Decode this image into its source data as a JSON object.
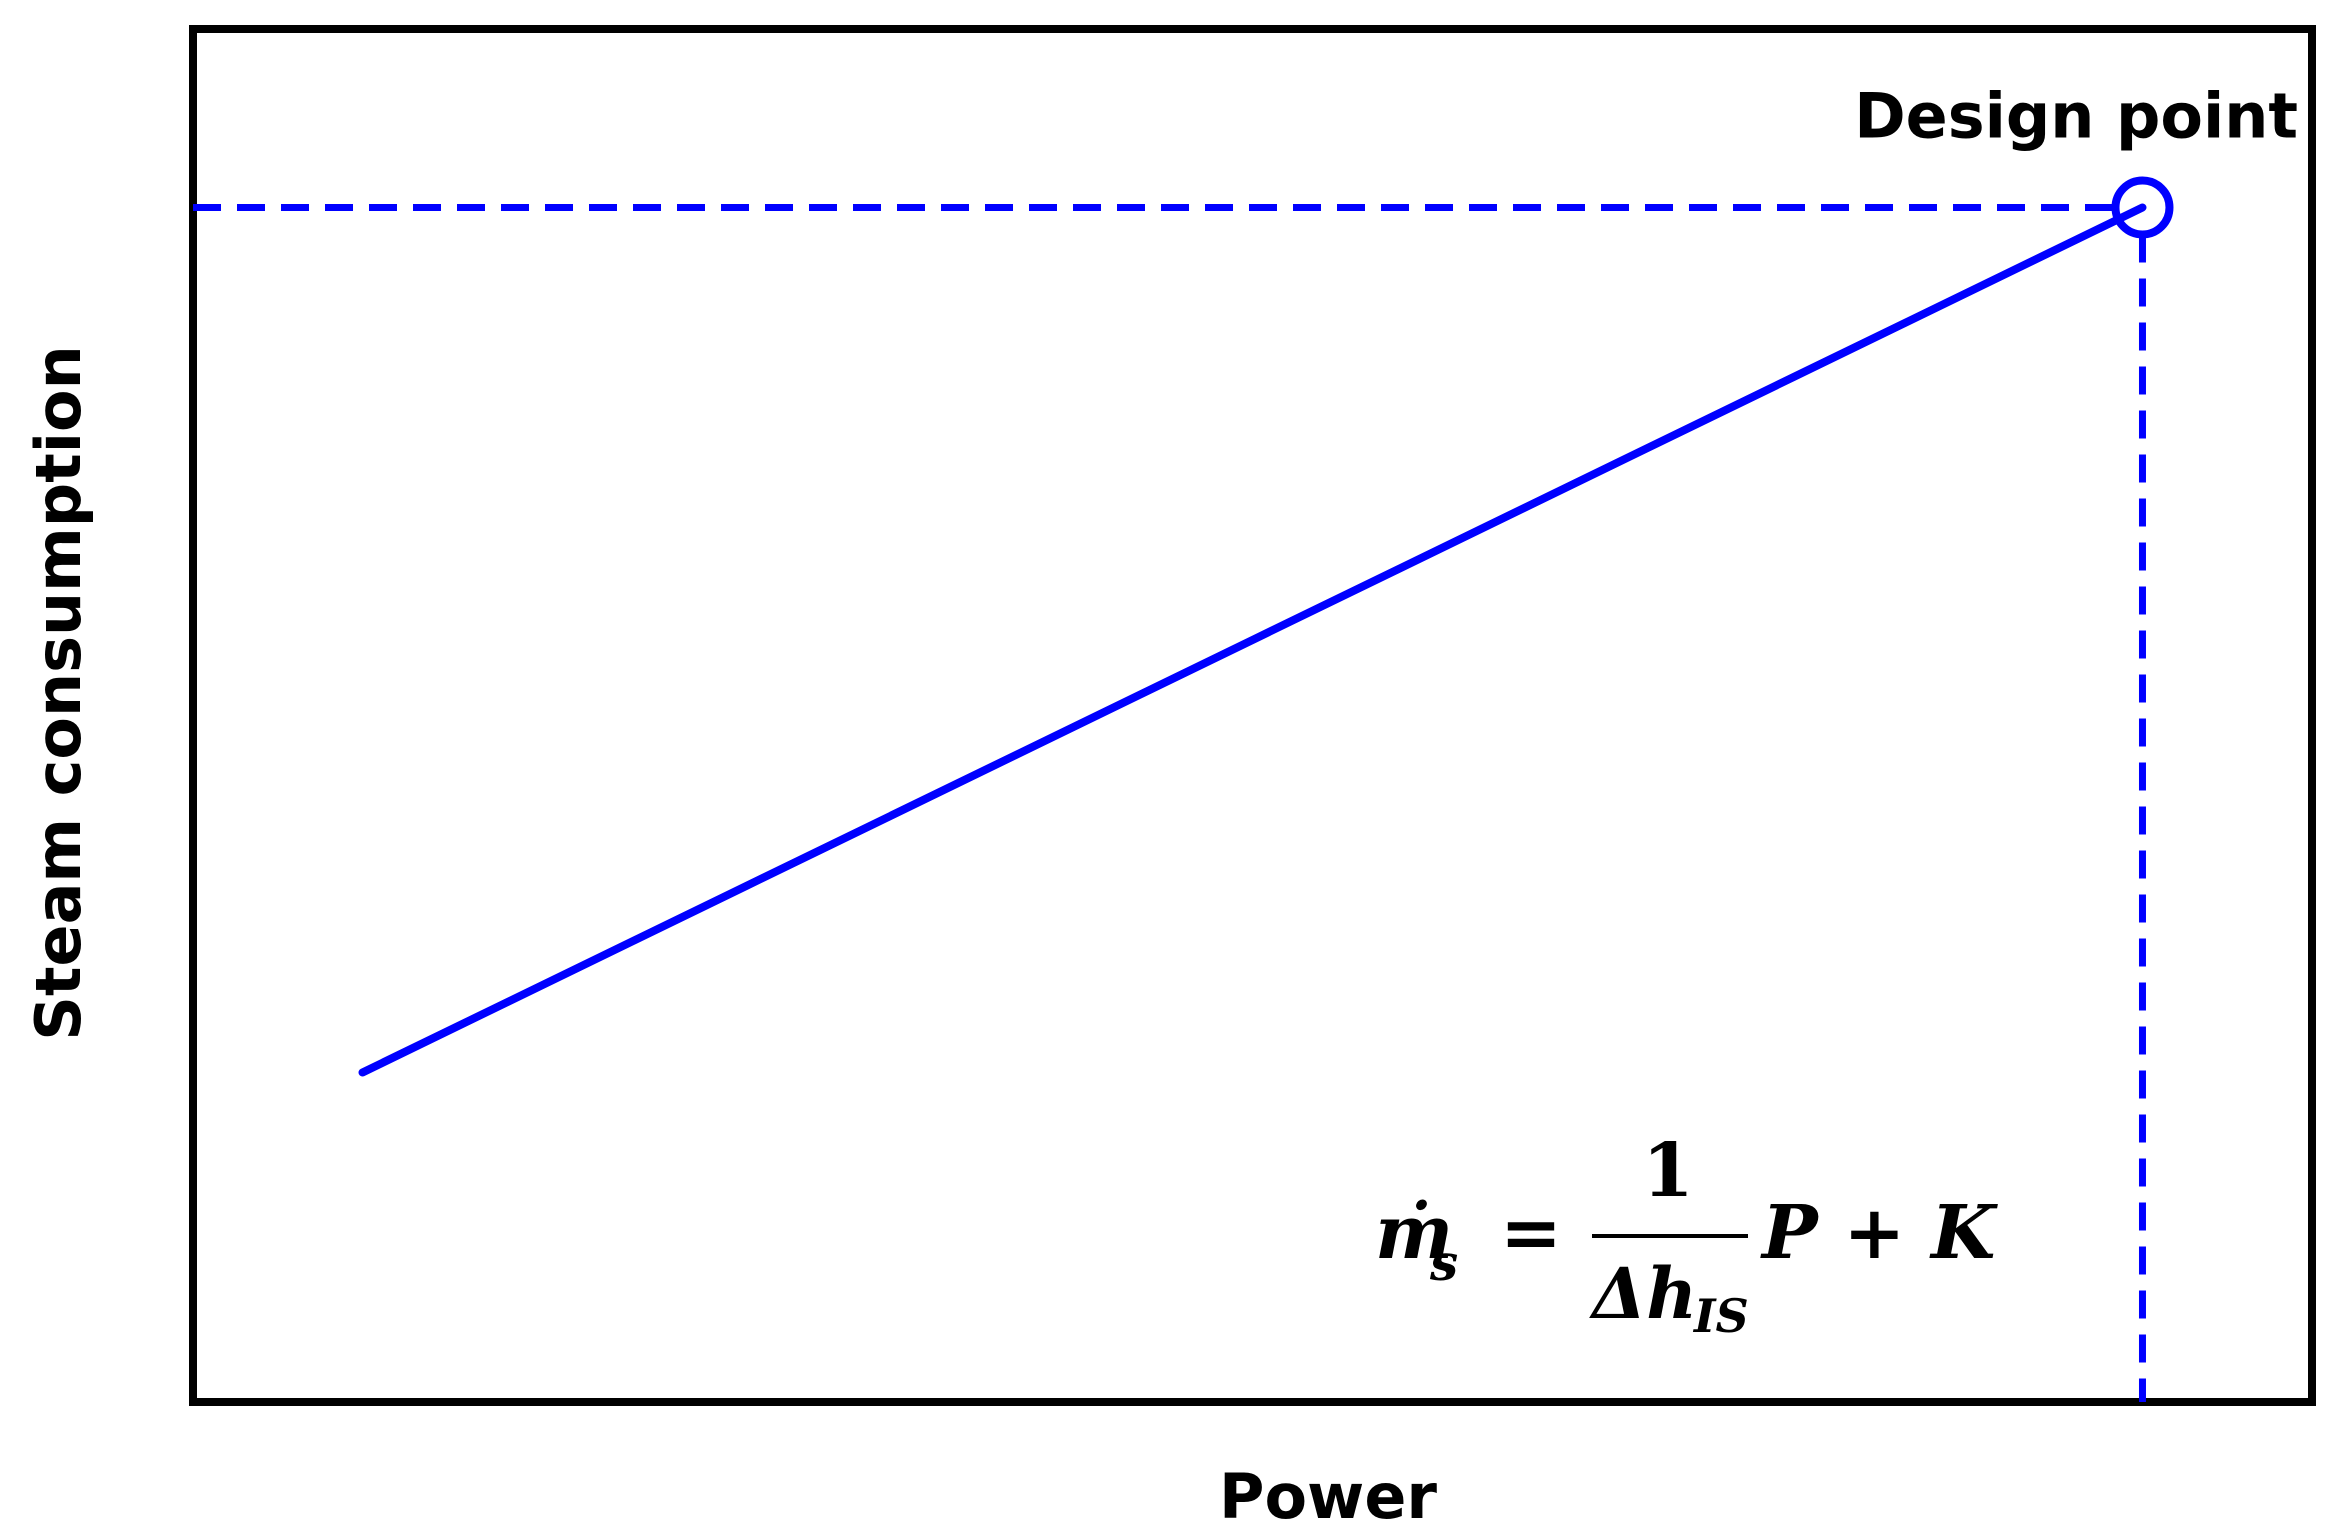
{
  "chart_data": {
    "type": "line",
    "xlabel": "Power",
    "ylabel": "Steam consumption",
    "xticks": [],
    "yticks": [],
    "grid": false,
    "series": [
      {
        "x": [
          0.08,
          0.92
        ],
        "y": [
          0.24,
          0.87
        ],
        "color": "#0000ff"
      }
    ],
    "annotations": {
      "design_point": {
        "label": "Design point",
        "x": 0.92,
        "y": 0.87
      },
      "equation": {
        "lhs_symbol": "ṁ",
        "lhs_subscript": "s",
        "equals": "=",
        "numerator": "1",
        "denominator_symbol": "Δh",
        "denominator_subscript": "IS",
        "rhs": "P + K"
      }
    },
    "xlim": [
      0,
      1
    ],
    "ylim": [
      0,
      1
    ]
  },
  "colors": {
    "line": "#0000ff",
    "frame": "#000000"
  }
}
